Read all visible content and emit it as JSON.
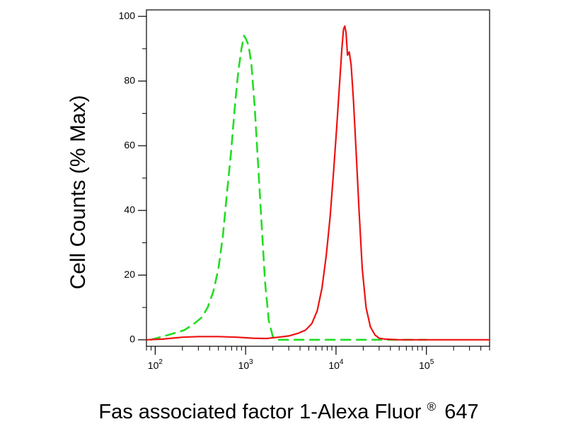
{
  "chart_data": {
    "type": "line",
    "title": "",
    "xlabel": "Fas associated factor 1-Alexa Fluor",
    "xlabel_superscript": "®",
    "xlabel_suffix": "647",
    "ylabel": "Cell Counts (% Max)",
    "x_scale": "log",
    "xlim": [
      80,
      500000
    ],
    "ylim": [
      -2,
      102
    ],
    "grid": false,
    "legend": "none",
    "y_ticks": [
      {
        "value": 0,
        "label": "0"
      },
      {
        "value": 20,
        "label": "20"
      },
      {
        "value": 40,
        "label": "40"
      },
      {
        "value": 60,
        "label": "60"
      },
      {
        "value": 80,
        "label": "80"
      },
      {
        "value": 100,
        "label": "100"
      }
    ],
    "x_ticks": [
      {
        "value": 100,
        "base": "10",
        "exp": "2"
      },
      {
        "value": 1000,
        "base": "10",
        "exp": "3"
      },
      {
        "value": 10000,
        "base": "10",
        "exp": "4"
      },
      {
        "value": 100000,
        "base": "10",
        "exp": "5"
      }
    ],
    "series": [
      {
        "color": "#22dd22",
        "dash": "dashed",
        "points": [
          [
            90,
            0
          ],
          [
            120,
            1
          ],
          [
            160,
            2
          ],
          [
            210,
            3
          ],
          [
            270,
            5
          ],
          [
            330,
            7
          ],
          [
            380,
            10
          ],
          [
            440,
            15
          ],
          [
            500,
            22
          ],
          [
            560,
            32
          ],
          [
            620,
            45
          ],
          [
            690,
            58
          ],
          [
            760,
            72
          ],
          [
            830,
            83
          ],
          [
            900,
            90
          ],
          [
            960,
            94
          ],
          [
            1010,
            93
          ],
          [
            1080,
            91
          ],
          [
            1160,
            85
          ],
          [
            1260,
            72
          ],
          [
            1370,
            55
          ],
          [
            1500,
            36
          ],
          [
            1640,
            18
          ],
          [
            1800,
            6
          ],
          [
            2000,
            1
          ],
          [
            2200,
            0
          ],
          [
            2600,
            0
          ],
          [
            4000,
            0
          ],
          [
            8000,
            0
          ],
          [
            15000,
            0
          ],
          [
            30000,
            0
          ],
          [
            60000,
            0
          ],
          [
            100000,
            0
          ]
        ]
      },
      {
        "color": "#ee1111",
        "dash": "solid",
        "points": [
          [
            80,
            0
          ],
          [
            120,
            0.2
          ],
          [
            200,
            0.8
          ],
          [
            300,
            1
          ],
          [
            500,
            1
          ],
          [
            800,
            0.8
          ],
          [
            1200,
            0.5
          ],
          [
            1700,
            0.4
          ],
          [
            2300,
            0.8
          ],
          [
            3000,
            1.2
          ],
          [
            3800,
            2
          ],
          [
            4600,
            3
          ],
          [
            5400,
            5
          ],
          [
            6200,
            9
          ],
          [
            7000,
            16
          ],
          [
            7800,
            26
          ],
          [
            8600,
            38
          ],
          [
            9400,
            52
          ],
          [
            10200,
            66
          ],
          [
            11000,
            80
          ],
          [
            11600,
            90
          ],
          [
            12100,
            96
          ],
          [
            12500,
            97
          ],
          [
            12900,
            95
          ],
          [
            13400,
            88
          ],
          [
            14000,
            89
          ],
          [
            14700,
            85
          ],
          [
            15600,
            74
          ],
          [
            16700,
            58
          ],
          [
            18000,
            40
          ],
          [
            19500,
            22
          ],
          [
            21500,
            10
          ],
          [
            24000,
            4
          ],
          [
            27000,
            1.5
          ],
          [
            30000,
            0.5
          ],
          [
            35000,
            0.2
          ],
          [
            50000,
            0
          ],
          [
            100000,
            0
          ],
          [
            200000,
            0
          ],
          [
            400000,
            0
          ],
          [
            500000,
            0
          ]
        ]
      }
    ]
  }
}
